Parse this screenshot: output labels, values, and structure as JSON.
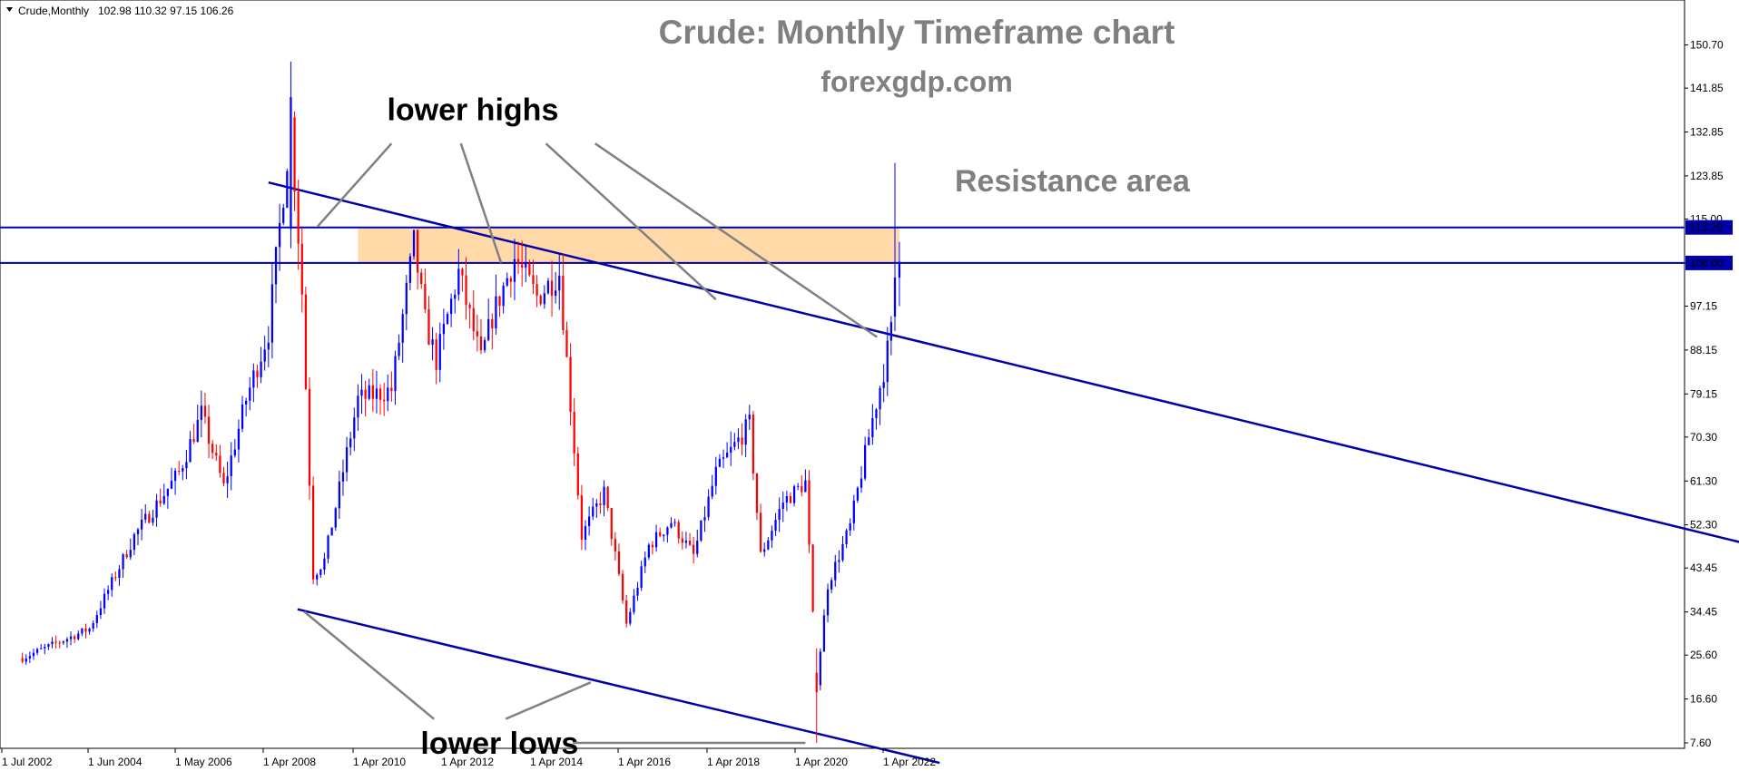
{
  "colors": {
    "bull": "#0000ff",
    "bear": "#ff0000",
    "trendline": "#0000aa",
    "level_line": "#0000aa",
    "resistance_fill": "#ffd9a8",
    "pointer": "#808080",
    "title_gray": "#808080",
    "price_label_bg": "#0000aa",
    "price_label_text": "#ffffff",
    "frame": "#000000"
  },
  "chart_data": {
    "type": "candlestick",
    "symbol_header": "Crude,Monthly",
    "ohlc_header": "102.98 110.32 97.15 106.26",
    "title": "Crude: Monthly Timeframe chart",
    "subtitle": "forexgdp.com",
    "x_tick_labels": [
      "1 Jul 2002",
      "1 Jun 2004",
      "1 May 2006",
      "1 Apr 2008",
      "1 Apr 2010",
      "1 Apr 2012",
      "1 Apr 2014",
      "1 Apr 2016",
      "1 Apr 2018",
      "1 Apr 2020",
      "1 Apr 2022"
    ],
    "y_tick_labels": [
      "150.70",
      "141.85",
      "132.85",
      "123.85",
      "115.00",
      "106.00",
      "97.15",
      "88.15",
      "79.15",
      "70.30",
      "61.30",
      "52.30",
      "43.45",
      "34.45",
      "25.60",
      "16.60",
      "7.60"
    ],
    "ylim": [
      3.0,
      153.0
    ],
    "xlim": [
      2002.0,
      2041.0
    ],
    "grid": false,
    "horizontal_levels": [
      {
        "value": 113.29,
        "label": "113.29"
      },
      {
        "value": 106.0,
        "label": "106.00"
      }
    ],
    "resistance_zone": {
      "from": 106.0,
      "to": 113.29,
      "x_start": 2010.0,
      "x_end": 2022.1
    },
    "resistance_text": "Resistance area",
    "upper_trendline": [
      [
        2008.0,
        122.5
      ],
      [
        2041.0,
        48.5
      ]
    ],
    "lower_trendline": [
      [
        2008.65,
        35.0
      ],
      [
        2023.0,
        3.5
      ]
    ],
    "annotations": [
      {
        "text": "lower highs",
        "x": 2010.65,
        "y": 137.5
      },
      {
        "text": "lower lows",
        "x": 2011.4,
        "y": 7.6
      }
    ],
    "pointers": [
      [
        [
          2010.75,
          130.5
        ],
        [
          2009.1,
          113.5
        ]
      ],
      [
        [
          2012.3,
          130.5
        ],
        [
          2013.2,
          106.0
        ]
      ],
      [
        [
          2014.2,
          130.5
        ],
        [
          2018.0,
          98.5
        ]
      ],
      [
        [
          2015.3,
          130.5
        ],
        [
          2021.6,
          90.8
        ]
      ],
      [
        [
          2011.7,
          12.5
        ],
        [
          2008.8,
          34.5
        ]
      ],
      [
        [
          2013.3,
          12.5
        ],
        [
          2015.2,
          20.0
        ]
      ],
      [
        [
          2014.8,
          7.6
        ],
        [
          2020.0,
          7.6
        ]
      ]
    ],
    "anchors": [
      [
        2002.5,
        25
      ],
      [
        2004.0,
        31
      ],
      [
        2005.0,
        50
      ],
      [
        2006.0,
        63
      ],
      [
        2006.5,
        75
      ],
      [
        2007.0,
        60
      ],
      [
        2007.5,
        78
      ],
      [
        2008.0,
        92
      ],
      [
        2008.5,
        135
      ],
      [
        2008.75,
        100
      ],
      [
        2009.0,
        42
      ],
      [
        2009.25,
        45
      ],
      [
        2010.0,
        78
      ],
      [
        2010.75,
        80
      ],
      [
        2011.25,
        110
      ],
      [
        2011.5,
        94
      ],
      [
        2011.75,
        86
      ],
      [
        2012.25,
        104
      ],
      [
        2012.75,
        86
      ],
      [
        2013.0,
        95
      ],
      [
        2013.5,
        107
      ],
      [
        2014.0,
        99
      ],
      [
        2014.5,
        104
      ],
      [
        2015.0,
        50
      ],
      [
        2015.5,
        59
      ],
      [
        2015.75,
        46
      ],
      [
        2016.0,
        32
      ],
      [
        2016.5,
        48
      ],
      [
        2017.0,
        53
      ],
      [
        2017.5,
        46
      ],
      [
        2018.0,
        63
      ],
      [
        2018.75,
        73
      ],
      [
        2019.0,
        46
      ],
      [
        2019.5,
        57
      ],
      [
        2020.0,
        61
      ],
      [
        2020.25,
        20
      ],
      [
        2020.5,
        40
      ],
      [
        2021.0,
        52
      ],
      [
        2021.5,
        74
      ],
      [
        2021.75,
        84
      ],
      [
        2022.0,
        96
      ],
      [
        2022.1,
        106.26
      ]
    ],
    "manual_candles": [
      {
        "t": 2008.5,
        "o": 113.0,
        "h": 147.3,
        "l": 109.0,
        "c": 140.0
      },
      {
        "t": 2020.25,
        "o": 22.0,
        "h": 27.0,
        "l": 7.6,
        "c": 18.0
      },
      {
        "t": 2022.1,
        "o": 102.98,
        "h": 110.32,
        "l": 97.15,
        "c": 106.26
      },
      {
        "t": 2022.0,
        "o": 95.0,
        "h": 126.5,
        "l": 92.0,
        "c": 103.0
      }
    ]
  }
}
